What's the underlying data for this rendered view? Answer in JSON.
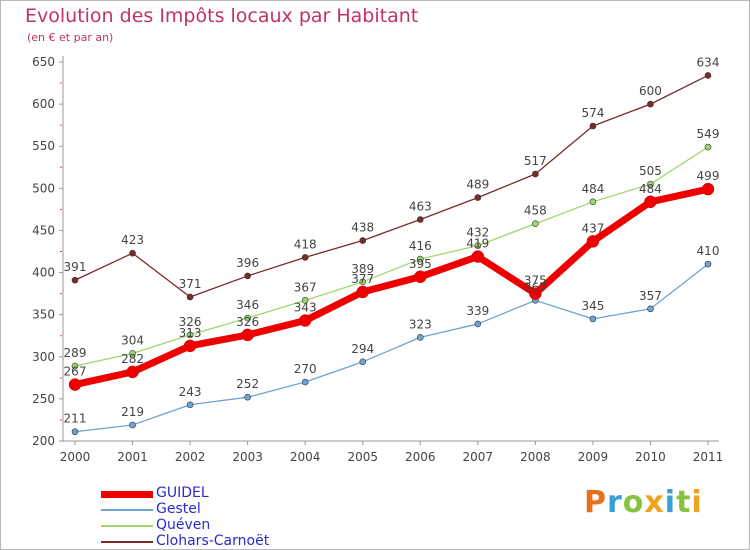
{
  "header": {
    "title": "Evolution des Impôts locaux par Habitant",
    "subtitle": "(en € et par an)"
  },
  "logo": {
    "letters": [
      "P",
      "r",
      "o",
      "x",
      "i",
      "t",
      "i"
    ],
    "colors": [
      "#e8701a",
      "#3aa0d8",
      "#86c440",
      "#f0a21c",
      "#3aa0d8",
      "#86c440",
      "#f0a21c"
    ]
  },
  "chart_data": {
    "type": "line",
    "title": "Evolution des Impôts locaux par Habitant",
    "subtitle": "(en € et par an)",
    "x": [
      "2000",
      "2001",
      "2002",
      "2003",
      "2004",
      "2005",
      "2006",
      "2007",
      "2008",
      "2009",
      "2010",
      "2011"
    ],
    "ylim": [
      200,
      650
    ],
    "yticks": [
      200,
      250,
      300,
      350,
      400,
      450,
      500,
      550,
      600,
      650
    ],
    "grid": false,
    "legend": "bottom-left",
    "series": [
      {
        "name": "GUIDEL",
        "color": "#ee0000",
        "emphasis": true,
        "values": [
          267,
          282,
          313,
          326,
          343,
          377,
          395,
          419,
          375,
          437,
          484,
          499
        ]
      },
      {
        "name": "Gestel",
        "color": "#6fa4d2",
        "values": [
          211,
          219,
          243,
          252,
          270,
          294,
          323,
          339,
          367,
          345,
          357,
          410
        ]
      },
      {
        "name": "Quéven",
        "color": "#9ed86c",
        "values": [
          289,
          304,
          326,
          346,
          367,
          389,
          416,
          432,
          458,
          484,
          505,
          549
        ]
      },
      {
        "name": "Clohars-Carnoët",
        "color": "#7a2a2a",
        "values": [
          391,
          423,
          371,
          396,
          418,
          438,
          463,
          489,
          517,
          574,
          600,
          634
        ]
      }
    ]
  }
}
